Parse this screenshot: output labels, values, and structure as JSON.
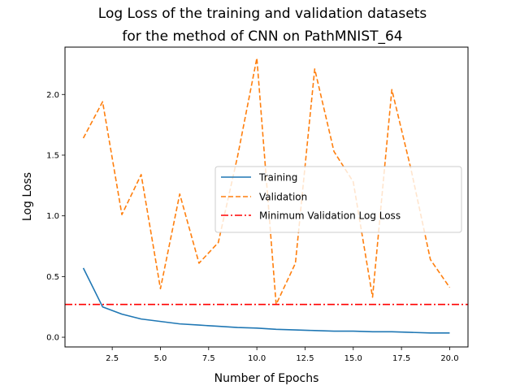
{
  "chart_data": {
    "type": "line",
    "title_lines": [
      "Log Loss of the training and validation datasets",
      "for the method of CNN on PathMNIST_64"
    ],
    "xlabel": "Number of Epochs",
    "ylabel": "Log Loss",
    "xlim": [
      0.05,
      20.95
    ],
    "ylim": [
      -0.08,
      2.39
    ],
    "x_ticks": [
      2.5,
      5.0,
      7.5,
      10.0,
      12.5,
      15.0,
      17.5,
      20.0
    ],
    "x_tick_labels": [
      "2.5",
      "5.0",
      "7.5",
      "10.0",
      "12.5",
      "15.0",
      "17.5",
      "20.0"
    ],
    "y_ticks": [
      0.0,
      0.5,
      1.0,
      1.5,
      2.0
    ],
    "y_tick_labels": [
      "0.0",
      "0.5",
      "1.0",
      "1.5",
      "2.0"
    ],
    "grid": false,
    "legend_position": "center-right",
    "x": [
      1,
      2,
      3,
      4,
      5,
      6,
      7,
      8,
      9,
      10,
      11,
      12,
      13,
      14,
      15,
      16,
      17,
      18,
      19,
      20
    ],
    "series": [
      {
        "name": "Training",
        "style": "solid",
        "color": "#1f77b4",
        "values": [
          0.57,
          0.25,
          0.19,
          0.15,
          0.13,
          0.11,
          0.1,
          0.09,
          0.08,
          0.075,
          0.065,
          0.06,
          0.055,
          0.05,
          0.05,
          0.045,
          0.045,
          0.04,
          0.035,
          0.035
        ]
      },
      {
        "name": "Validation",
        "style": "dashed",
        "color": "#ff7f0e",
        "values": [
          1.64,
          1.94,
          1.01,
          1.34,
          0.4,
          1.18,
          0.61,
          0.78,
          1.49,
          2.3,
          0.27,
          0.61,
          2.21,
          1.53,
          1.28,
          0.33,
          2.04,
          1.38,
          0.64,
          0.41
        ]
      },
      {
        "name": "Minimum Validation Log Loss",
        "style": "dashdot",
        "color": "#ff0000",
        "hline": 0.27
      }
    ]
  }
}
